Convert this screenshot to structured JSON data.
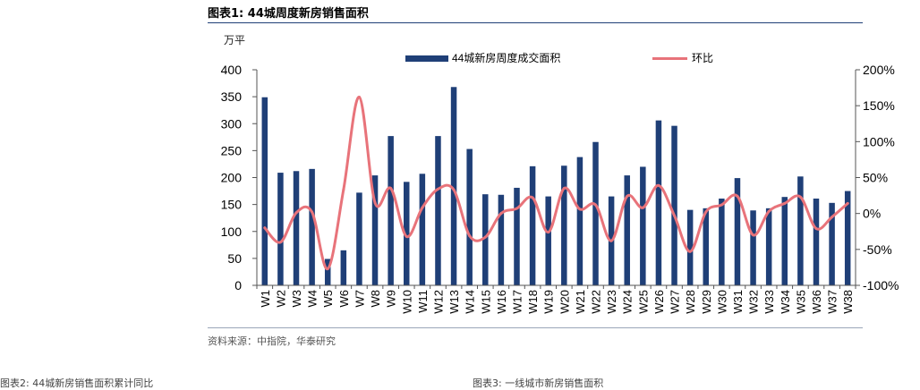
{
  "figure": {
    "title": "图表1:  44城周度新房销售面积",
    "source": "资料来源：中指院，华泰研究",
    "next_left_caption": "图表2:  44城新房销售面积累计同比",
    "next_right_caption": "图表3:  一线城市新房销售面积"
  },
  "chart_data": {
    "type": "bar+line",
    "title": "",
    "categories": [
      "W1",
      "W2",
      "W3",
      "W4",
      "W5",
      "W6",
      "W7",
      "W8",
      "W9",
      "W10",
      "W11",
      "W12",
      "W13",
      "W14",
      "W15",
      "W16",
      "W17",
      "W18",
      "W19",
      "W20",
      "W21",
      "W22",
      "W23",
      "W24",
      "W25",
      "W26",
      "W27",
      "W28",
      "W29",
      "W30",
      "W31",
      "W32",
      "W33",
      "W34",
      "W35",
      "W36",
      "W37",
      "W38"
    ],
    "y_left": {
      "unit_label": "万平",
      "ylim": [
        0,
        400
      ],
      "ticks": [
        "0",
        "50",
        "100",
        "150",
        "200",
        "250",
        "300",
        "350",
        "400"
      ]
    },
    "y_right": {
      "ylim": [
        -100,
        200
      ],
      "ticks": [
        "-100%",
        "-50%",
        "0%",
        "50%",
        "100%",
        "150%",
        "200%"
      ]
    },
    "series": [
      {
        "name": "44城新房周度成交面积",
        "type": "bar",
        "axis": "left",
        "color": "#1f3f77",
        "values": [
          349,
          209,
          212,
          216,
          49,
          65,
          172,
          204,
          277,
          192,
          207,
          277,
          368,
          253,
          169,
          168,
          181,
          221,
          165,
          222,
          238,
          266,
          165,
          204,
          220,
          306,
          296,
          140,
          143,
          161,
          199,
          139,
          143,
          164,
          202,
          161,
          153,
          175
        ]
      },
      {
        "name": "环比",
        "type": "line",
        "axis": "right",
        "color": "#e8737a",
        "values": [
          -20,
          -40,
          1,
          2,
          -77,
          33,
          162,
          15,
          35,
          -32,
          8,
          34,
          33,
          -31,
          -33,
          0,
          7,
          22,
          -26,
          35,
          6,
          12,
          -38,
          24,
          8,
          39,
          -3,
          -53,
          2,
          12,
          24,
          -30,
          3,
          14,
          23,
          -21,
          -5,
          14
        ]
      }
    ],
    "legend_position": "top",
    "grid": false
  }
}
